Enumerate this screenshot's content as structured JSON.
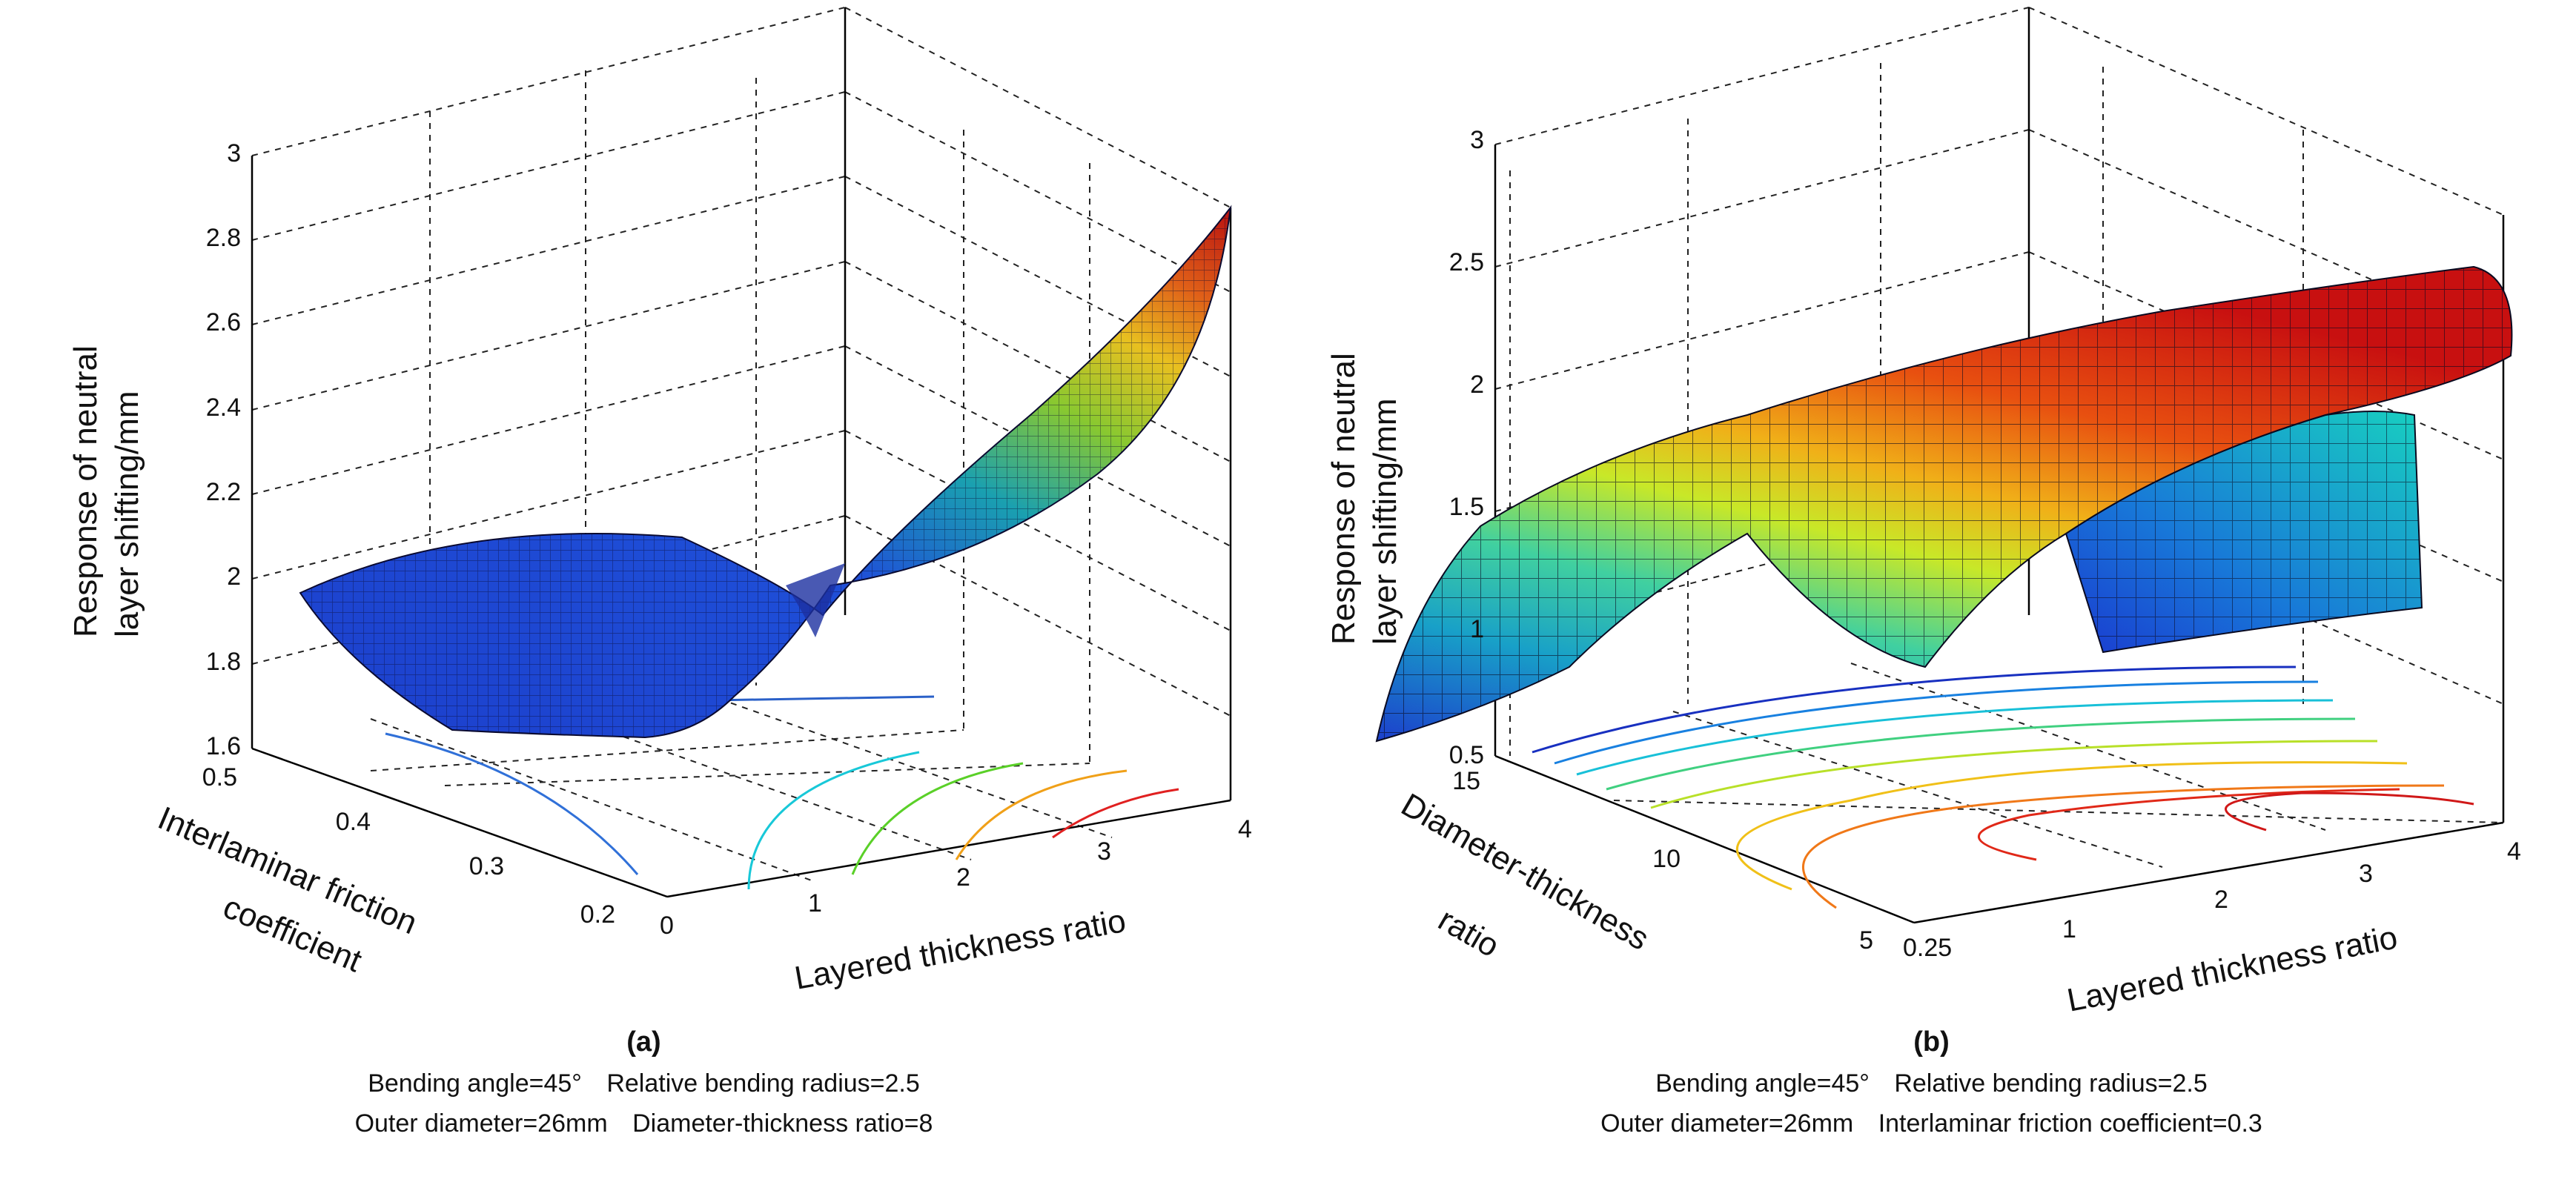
{
  "chart_data": [
    {
      "type": "surface3d",
      "panel_label": "(a)",
      "zlabel_line1": "Response of neutral",
      "zlabel_line2": "layer shifting/mm",
      "xlabel": "Layered thickness ratio",
      "ylabel_line1": "Interlaminar friction",
      "ylabel_line2": "coefficient",
      "x_ticks": [
        "0",
        "1",
        "2",
        "3",
        "4"
      ],
      "y_ticks": [
        "0.2",
        "0.3",
        "0.4",
        "0.5"
      ],
      "z_ticks": [
        "1.6",
        "1.8",
        "2",
        "2.2",
        "2.4",
        "2.6",
        "2.8",
        "3"
      ],
      "xlim": [
        0,
        4
      ],
      "ylim": [
        0.2,
        0.5
      ],
      "zlim": [
        1.6,
        3.0
      ],
      "surface_samples": [
        {
          "x": 0,
          "y": 0.2,
          "z": 1.95
        },
        {
          "x": 0,
          "y": 0.5,
          "z": 1.95
        },
        {
          "x": 4,
          "y": 0.2,
          "z": 2.95
        },
        {
          "x": 4,
          "y": 0.5,
          "z": 2.05
        },
        {
          "x": 2,
          "y": 0.35,
          "z": 2.0
        }
      ],
      "caption_line1": [
        "Bending angle=45°",
        "Relative bending radius=2.5"
      ],
      "caption_line2": [
        "Outer diameter=26mm",
        "Diameter-thickness ratio=8"
      ]
    },
    {
      "type": "surface3d",
      "panel_label": "(b)",
      "zlabel_line1": "Response of neutral",
      "zlabel_line2": "layer shifting/mm",
      "xlabel": "Layered thickness ratio",
      "ylabel_line1": "Diameter-thickness",
      "ylabel_line2": "ratio",
      "x_ticks": [
        "0.25",
        "1",
        "2",
        "3",
        "4"
      ],
      "y_ticks": [
        "5",
        "10",
        "15"
      ],
      "z_ticks": [
        "0.5",
        "1",
        "1.5",
        "2",
        "2.5",
        "3"
      ],
      "xlim": [
        0.25,
        4
      ],
      "ylim": [
        5,
        15
      ],
      "zlim": [
        0.5,
        3.0
      ],
      "surface_samples": [
        {
          "x": 0.25,
          "y": 15,
          "z": 0.55
        },
        {
          "x": 0.25,
          "y": 5,
          "z": 1.25
        },
        {
          "x": 4,
          "y": 15,
          "z": 1.05
        },
        {
          "x": 4,
          "y": 5,
          "z": 2.2
        },
        {
          "x": 2.5,
          "y": 8,
          "z": 2.35
        }
      ],
      "caption_line1": [
        "Bending angle=45°",
        "Relative bending radius=2.5"
      ],
      "caption_line2": [
        "Outer diameter=26mm",
        "Interlaminar friction coefficient=0.3"
      ]
    }
  ]
}
